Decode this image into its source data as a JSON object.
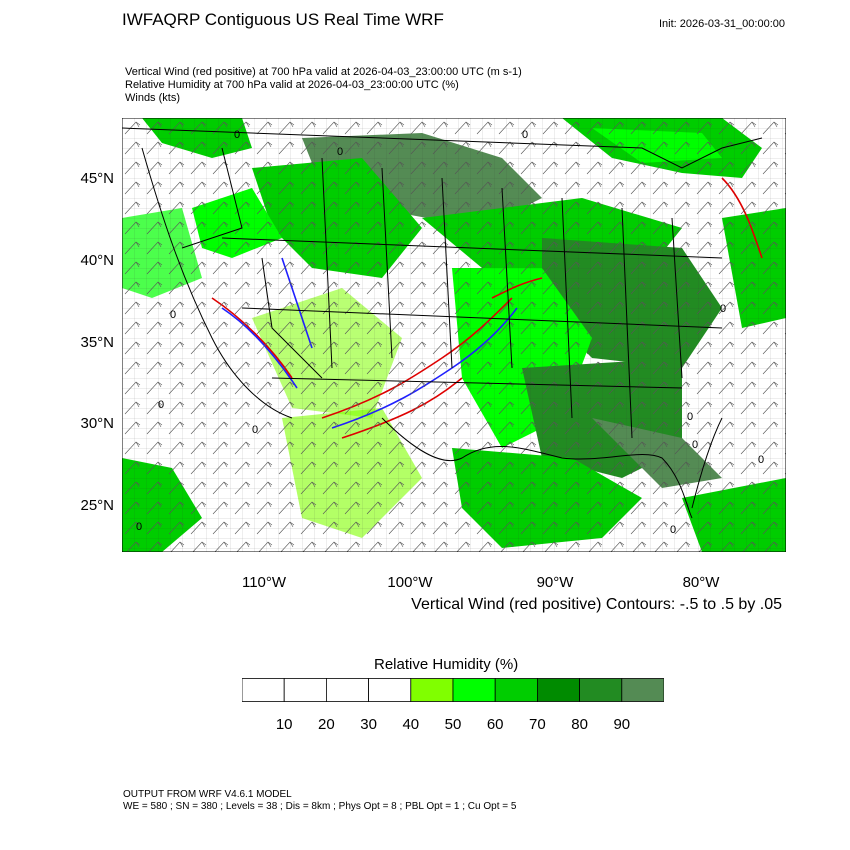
{
  "header": {
    "title": "IWFAQRP Contiguous US Real Time WRF",
    "init": "Init: 2026-03-31_00:00:00"
  },
  "description": {
    "line1": "Vertical Wind (red positive) at 700 hPa valid at 2026-04-03_23:00:00 UTC   (m s-1)",
    "line2": "Relative Humidity at 700 hPa valid at 2026-04-03_23:00:00 UTC   (%)",
    "line3": "Winds   (kts)"
  },
  "map": {
    "lat_labels": [
      "45°N",
      "40°N",
      "35°N",
      "30°N",
      "25°N"
    ],
    "lon_labels": [
      "110°W",
      "100°W",
      "90°W",
      "80°W"
    ],
    "contour_note": "Vertical Wind (red positive) Contours: -.5 to .5 by .05",
    "contour_label": "0",
    "colors": {
      "rh_40_50": "#80ff00",
      "rh_50_60": "#00ff00",
      "rh_60_70": "#00cd00",
      "rh_70_80": "#008b00",
      "rh_80_90": "#228b22",
      "rh_90_100": "#548b54",
      "updraft": "#e00000",
      "downdraft": "#2020ff",
      "ocean": "#ffffff"
    }
  },
  "colorbar": {
    "title": "Relative Humidity  (%)",
    "labels": [
      "10",
      "20",
      "30",
      "40",
      "50",
      "60",
      "70",
      "80",
      "90"
    ],
    "colors": [
      "#ffffff",
      "#ffffff",
      "#ffffff",
      "#ffffff",
      "#80ff00",
      "#00ff00",
      "#00cd00",
      "#008b00",
      "#228b22",
      "#548b54"
    ]
  },
  "footer": {
    "line1": "OUTPUT FROM WRF V4.6.1 MODEL",
    "line2": "WE = 580 ; SN = 380 ; Levels = 38 ; Dis = 8km ; Phys Opt = 8 ; PBL Opt = 1 ; Cu Opt = 5"
  }
}
